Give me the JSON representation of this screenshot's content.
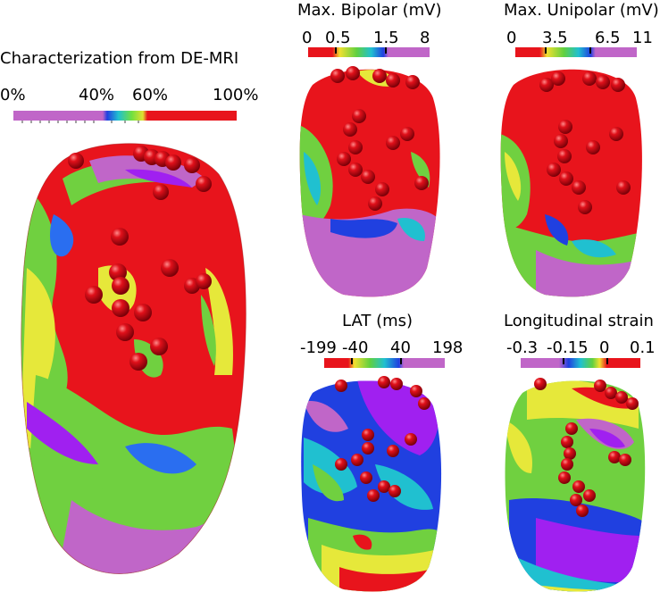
{
  "panels": {
    "demri": {
      "title": "Characterization from DE-MRI",
      "ticks": [
        "0%",
        "40%",
        "60%",
        "100%"
      ]
    },
    "bipolar": {
      "title": "Max. Bipolar (mV)",
      "ticks": [
        "0",
        "0.5",
        "1.5",
        "8"
      ]
    },
    "unipolar": {
      "title": "Max. Unipolar (mV)",
      "ticks": [
        "0",
        "3.5",
        "6.5",
        "11"
      ]
    },
    "lat": {
      "title": "LAT (ms)",
      "ticks": [
        "-199",
        "-40",
        "40",
        "198"
      ]
    },
    "strain": {
      "title": "Longitudinal strain",
      "ticks": [
        "-0.3",
        "-0.15",
        "0",
        "0.1"
      ]
    }
  },
  "colors": {
    "red": "#e8141c",
    "magenta": "#c066c8",
    "purple": "#a020f0",
    "green": "#5fd03a",
    "blue": "#3a6ee8",
    "yellow": "#e6e83a",
    "sphere": "#e0101a"
  }
}
